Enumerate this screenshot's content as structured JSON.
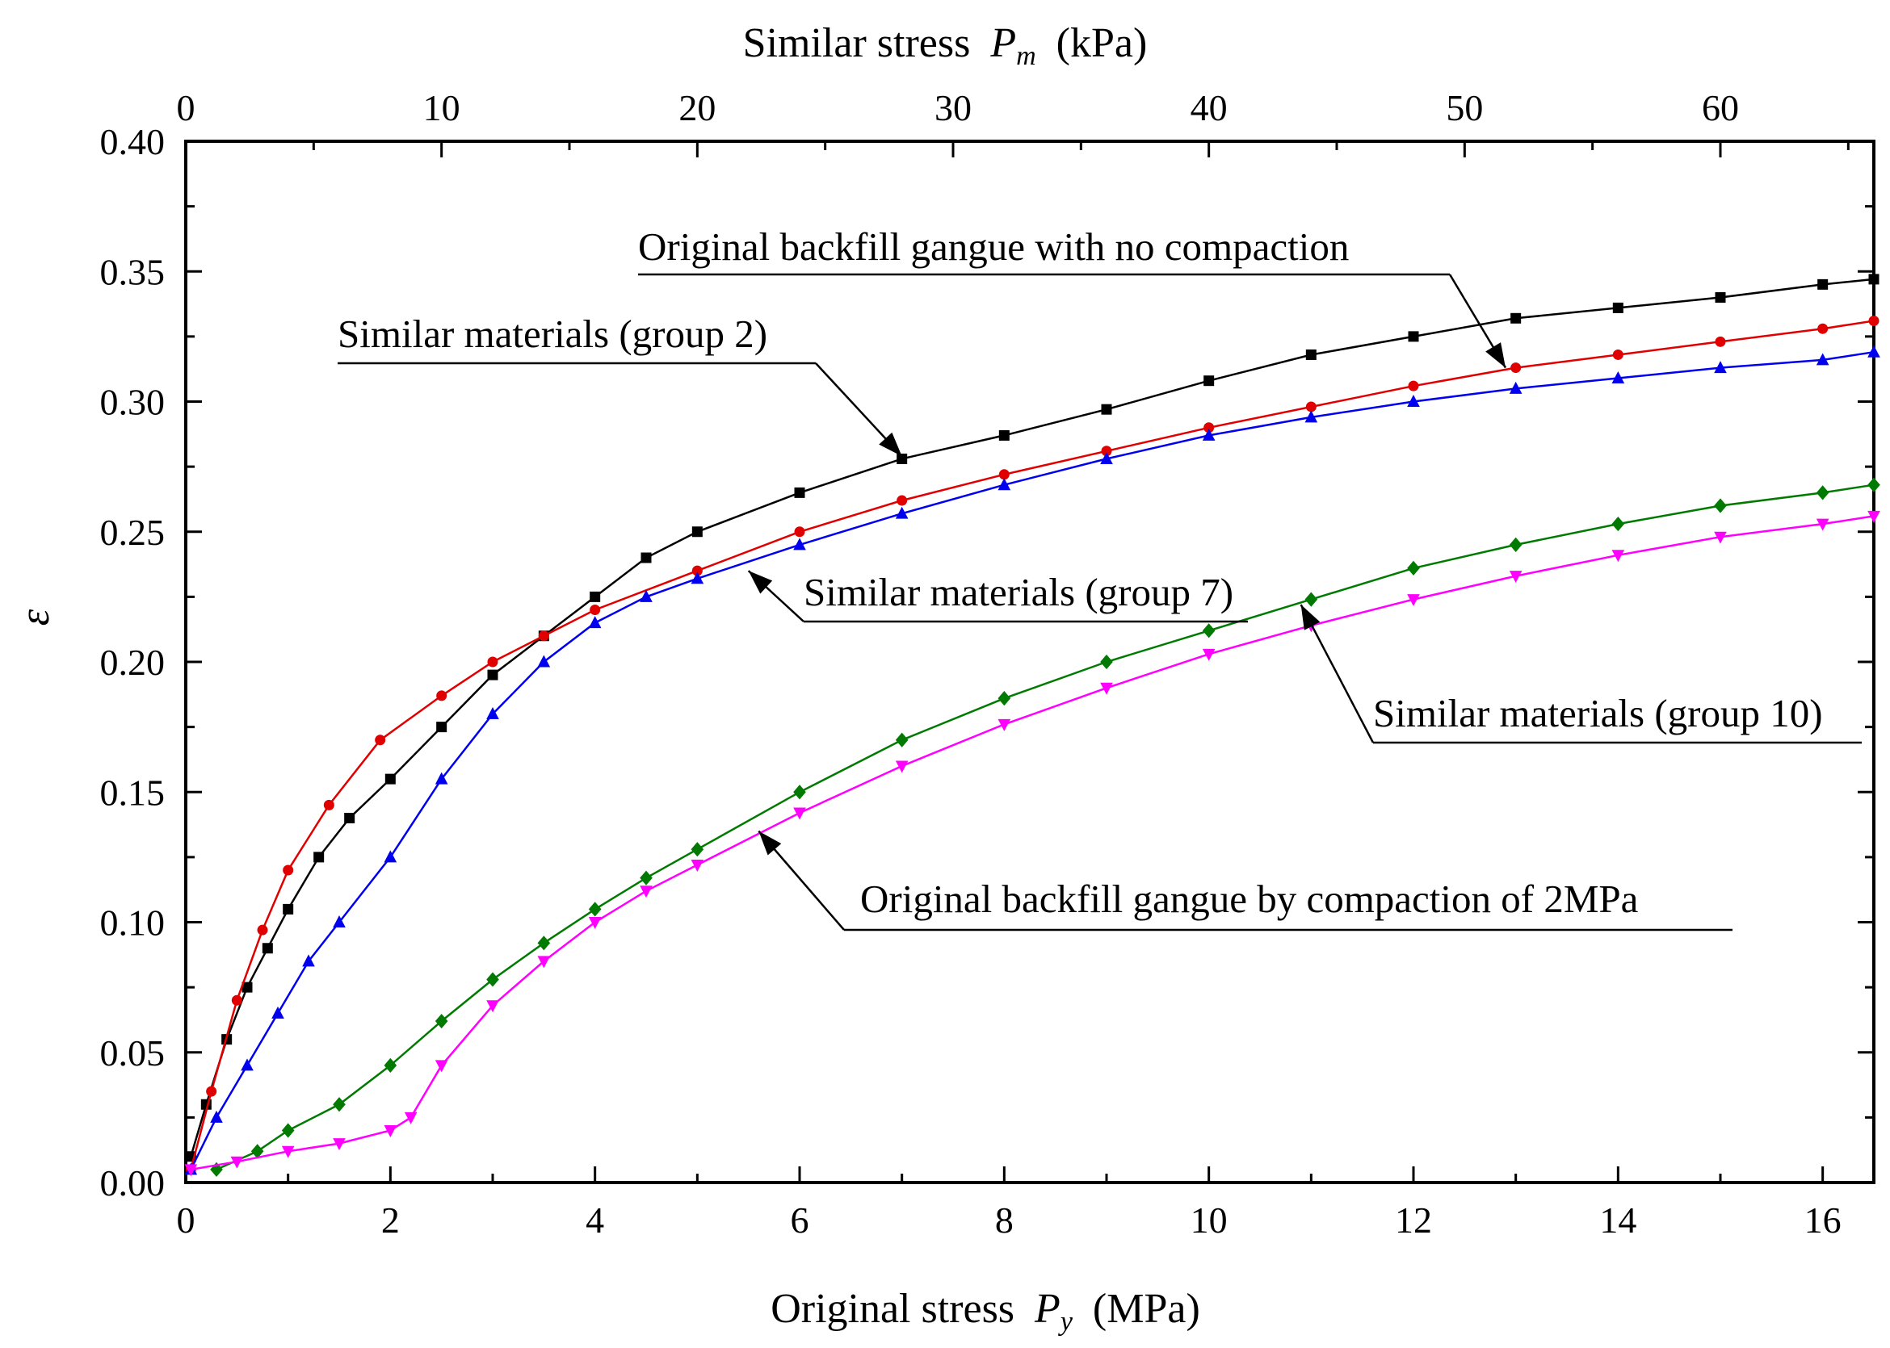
{
  "chart_data": {
    "type": "line",
    "x_bottom": {
      "label": "Original stress",
      "symbol": "P",
      "subscript": "y",
      "unit": "(MPa)",
      "range": [
        0,
        16.5
      ],
      "ticks": [
        0,
        2,
        4,
        6,
        8,
        10,
        12,
        14,
        16
      ]
    },
    "x_top": {
      "label": "Similar stress",
      "symbol": "P",
      "subscript": "m",
      "unit": "(kPa)",
      "range": [
        0,
        66
      ],
      "ticks": [
        0,
        10,
        20,
        30,
        40,
        50,
        60
      ]
    },
    "y": {
      "label": "ε",
      "range": [
        0,
        0.4
      ],
      "ticks": [
        "0.00",
        "0.05",
        "0.10",
        "0.15",
        "0.20",
        "0.25",
        "0.30",
        "0.35",
        "0.40"
      ]
    },
    "grid": false,
    "series": [
      {
        "id": "s-black",
        "color": "#000000",
        "marker": "square",
        "x": [
          0.05,
          0.2,
          0.4,
          0.6,
          0.8,
          1.0,
          1.3,
          1.6,
          2.0,
          2.5,
          3.0,
          3.5,
          4.0,
          4.5,
          5.0,
          6.0,
          7.0,
          8.0,
          9.0,
          10.0,
          11.0,
          12.0,
          13.0,
          14.0,
          15.0,
          16.0,
          16.5
        ],
        "y": [
          0.01,
          0.03,
          0.055,
          0.075,
          0.09,
          0.105,
          0.125,
          0.14,
          0.155,
          0.175,
          0.195,
          0.21,
          0.225,
          0.24,
          0.25,
          0.265,
          0.278,
          0.287,
          0.297,
          0.308,
          0.318,
          0.325,
          0.332,
          0.336,
          0.34,
          0.345,
          0.347
        ]
      },
      {
        "id": "s-red",
        "color": "#e00000",
        "marker": "circle",
        "x": [
          0.05,
          0.25,
          0.5,
          0.75,
          1.0,
          1.4,
          1.9,
          2.5,
          3.0,
          3.5,
          4.0,
          5.0,
          6.0,
          7.0,
          8.0,
          9.0,
          10.0,
          11.0,
          12.0,
          13.0,
          14.0,
          15.0,
          16.0,
          16.5
        ],
        "y": [
          0.005,
          0.035,
          0.07,
          0.097,
          0.12,
          0.145,
          0.17,
          0.187,
          0.2,
          0.21,
          0.22,
          0.235,
          0.25,
          0.262,
          0.272,
          0.281,
          0.29,
          0.298,
          0.306,
          0.313,
          0.318,
          0.323,
          0.328,
          0.331
        ]
      },
      {
        "id": "s-blue",
        "color": "#0000ee",
        "marker": "triangle-up",
        "x": [
          0.05,
          0.3,
          0.6,
          0.9,
          1.2,
          1.5,
          2.0,
          2.5,
          3.0,
          3.5,
          4.0,
          4.5,
          5.0,
          6.0,
          7.0,
          8.0,
          9.0,
          10.0,
          11.0,
          12.0,
          13.0,
          14.0,
          15.0,
          16.0,
          16.5
        ],
        "y": [
          0.005,
          0.025,
          0.045,
          0.065,
          0.085,
          0.1,
          0.125,
          0.155,
          0.18,
          0.2,
          0.215,
          0.225,
          0.232,
          0.245,
          0.257,
          0.268,
          0.278,
          0.287,
          0.294,
          0.3,
          0.305,
          0.309,
          0.313,
          0.316,
          0.319
        ]
      },
      {
        "id": "s-green",
        "color": "#007a00",
        "marker": "diamond",
        "x": [
          0.3,
          0.7,
          1.0,
          1.5,
          2.0,
          2.5,
          3.0,
          3.5,
          4.0,
          4.5,
          5.0,
          6.0,
          7.0,
          8.0,
          9.0,
          10.0,
          11.0,
          12.0,
          13.0,
          14.0,
          15.0,
          16.0,
          16.5
        ],
        "y": [
          0.005,
          0.012,
          0.02,
          0.03,
          0.045,
          0.062,
          0.078,
          0.092,
          0.105,
          0.117,
          0.128,
          0.15,
          0.17,
          0.186,
          0.2,
          0.212,
          0.224,
          0.236,
          0.245,
          0.253,
          0.26,
          0.265,
          0.268
        ]
      },
      {
        "id": "s-magenta",
        "color": "#ff00ff",
        "marker": "triangle-down",
        "x": [
          0.05,
          0.5,
          1.0,
          1.5,
          2.0,
          2.2,
          2.5,
          3.0,
          3.5,
          4.0,
          4.5,
          5.0,
          6.0,
          7.0,
          8.0,
          9.0,
          10.0,
          11.0,
          12.0,
          13.0,
          14.0,
          15.0,
          16.0,
          16.5
        ],
        "y": [
          0.005,
          0.008,
          0.012,
          0.015,
          0.02,
          0.025,
          0.045,
          0.068,
          0.085,
          0.1,
          0.112,
          0.122,
          0.142,
          0.16,
          0.176,
          0.19,
          0.203,
          0.214,
          0.224,
          0.233,
          0.241,
          0.248,
          0.253,
          0.256
        ]
      }
    ],
    "annotations": [
      {
        "text": "Original backfill gangue with no compaction",
        "points_to": [
          12.9,
          0.313
        ]
      },
      {
        "text": "Similar materials (group 2)",
        "points_to": [
          7.0,
          0.279
        ]
      },
      {
        "text": "Similar materials (group 7)",
        "points_to": [
          5.5,
          0.235
        ]
      },
      {
        "text": "Similar materials (group 10)",
        "points_to": [
          10.9,
          0.222
        ]
      },
      {
        "text": "Original backfill gangue by compaction of 2MPa",
        "points_to": [
          5.6,
          0.135
        ]
      }
    ]
  }
}
